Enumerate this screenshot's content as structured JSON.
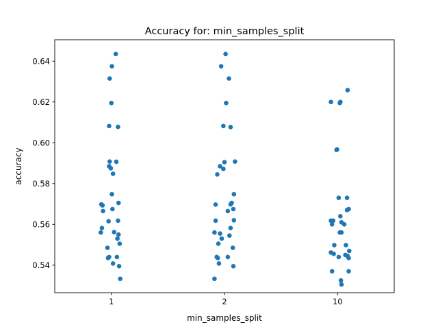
{
  "chart_data": {
    "type": "scatter",
    "title": "Accuracy for: min_samples_split",
    "xlabel": "min_samples_split",
    "ylabel": "accuracy",
    "categories": [
      "1",
      "2",
      "10"
    ],
    "ylim": [
      0.5265,
      0.6505
    ],
    "yticks": [
      "0.54",
      "0.56",
      "0.58",
      "0.60",
      "0.62",
      "0.64"
    ],
    "grid": false,
    "marker_color": "#1f77b4",
    "series": [
      {
        "category": "1",
        "points": [
          {
            "offset": 0.08,
            "y": 0.6435
          },
          {
            "offset": 0.01,
            "y": 0.6375
          },
          {
            "offset": -0.03,
            "y": 0.6315
          },
          {
            "offset": 0.0,
            "y": 0.6195
          },
          {
            "offset": -0.04,
            "y": 0.6082
          },
          {
            "offset": 0.12,
            "y": 0.6078
          },
          {
            "offset": -0.03,
            "y": 0.5908
          },
          {
            "offset": 0.09,
            "y": 0.5907
          },
          {
            "offset": -0.04,
            "y": 0.5885
          },
          {
            "offset": -0.01,
            "y": 0.5875
          },
          {
            "offset": 0.03,
            "y": 0.5848
          },
          {
            "offset": 0.01,
            "y": 0.5748
          },
          {
            "offset": 0.13,
            "y": 0.5705
          },
          {
            "offset": -0.18,
            "y": 0.5698
          },
          {
            "offset": -0.16,
            "y": 0.5693
          },
          {
            "offset": 0.02,
            "y": 0.5675
          },
          {
            "offset": -0.15,
            "y": 0.5665
          },
          {
            "offset": 0.12,
            "y": 0.5618
          },
          {
            "offset": -0.05,
            "y": 0.5615
          },
          {
            "offset": -0.17,
            "y": 0.5582
          },
          {
            "offset": -0.19,
            "y": 0.556
          },
          {
            "offset": 0.05,
            "y": 0.5562
          },
          {
            "offset": 0.13,
            "y": 0.555
          },
          {
            "offset": 0.11,
            "y": 0.553
          },
          {
            "offset": 0.15,
            "y": 0.5505
          },
          {
            "offset": -0.07,
            "y": 0.5485
          },
          {
            "offset": -0.04,
            "y": 0.544
          },
          {
            "offset": -0.06,
            "y": 0.5435
          },
          {
            "offset": 0.1,
            "y": 0.544
          },
          {
            "offset": 0.03,
            "y": 0.5408
          },
          {
            "offset": 0.14,
            "y": 0.5395
          },
          {
            "offset": 0.16,
            "y": 0.5333
          }
        ]
      },
      {
        "category": "2",
        "points": [
          {
            "offset": 0.02,
            "y": 0.6435
          },
          {
            "offset": -0.06,
            "y": 0.6375
          },
          {
            "offset": 0.08,
            "y": 0.6315
          },
          {
            "offset": 0.03,
            "y": 0.6195
          },
          {
            "offset": -0.02,
            "y": 0.6082
          },
          {
            "offset": 0.11,
            "y": 0.6077
          },
          {
            "offset": 0.19,
            "y": 0.5908
          },
          {
            "offset": 0.0,
            "y": 0.5905
          },
          {
            "offset": -0.08,
            "y": 0.5885
          },
          {
            "offset": -0.02,
            "y": 0.5872
          },
          {
            "offset": -0.13,
            "y": 0.5845
          },
          {
            "offset": 0.17,
            "y": 0.5748
          },
          {
            "offset": 0.13,
            "y": 0.5705
          },
          {
            "offset": 0.11,
            "y": 0.5698
          },
          {
            "offset": -0.16,
            "y": 0.5697
          },
          {
            "offset": 0.16,
            "y": 0.5675
          },
          {
            "offset": 0.06,
            "y": 0.5665
          },
          {
            "offset": 0.17,
            "y": 0.562
          },
          {
            "offset": -0.16,
            "y": 0.5618
          },
          {
            "offset": 0.11,
            "y": 0.5582
          },
          {
            "offset": -0.18,
            "y": 0.556
          },
          {
            "offset": -0.08,
            "y": 0.5555
          },
          {
            "offset": 0.09,
            "y": 0.5545
          },
          {
            "offset": -0.05,
            "y": 0.553
          },
          {
            "offset": -0.11,
            "y": 0.5505
          },
          {
            "offset": 0.15,
            "y": 0.5485
          },
          {
            "offset": -0.14,
            "y": 0.544
          },
          {
            "offset": -0.12,
            "y": 0.5435
          },
          {
            "offset": 0.06,
            "y": 0.544
          },
          {
            "offset": -0.1,
            "y": 0.5408
          },
          {
            "offset": 0.16,
            "y": 0.5395
          },
          {
            "offset": -0.18,
            "y": 0.5333
          }
        ]
      },
      {
        "category": "10",
        "points": [
          {
            "offset": 0.18,
            "y": 0.6258
          },
          {
            "offset": -0.12,
            "y": 0.62
          },
          {
            "offset": 0.05,
            "y": 0.62
          },
          {
            "offset": 0.04,
            "y": 0.6195
          },
          {
            "offset": -0.01,
            "y": 0.5967
          },
          {
            "offset": -0.02,
            "y": 0.5965
          },
          {
            "offset": 0.02,
            "y": 0.573
          },
          {
            "offset": 0.17,
            "y": 0.573
          },
          {
            "offset": 0.2,
            "y": 0.5675
          },
          {
            "offset": 0.17,
            "y": 0.567
          },
          {
            "offset": 0.05,
            "y": 0.564
          },
          {
            "offset": -0.12,
            "y": 0.5618
          },
          {
            "offset": -0.08,
            "y": 0.5618
          },
          {
            "offset": 0.07,
            "y": 0.561
          },
          {
            "offset": -0.1,
            "y": 0.56
          },
          {
            "offset": 0.12,
            "y": 0.56
          },
          {
            "offset": 0.07,
            "y": 0.556
          },
          {
            "offset": 0.04,
            "y": 0.556
          },
          {
            "offset": -0.06,
            "y": 0.5498
          },
          {
            "offset": 0.15,
            "y": 0.5498
          },
          {
            "offset": 0.21,
            "y": 0.547
          },
          {
            "offset": -0.12,
            "y": 0.5462
          },
          {
            "offset": -0.07,
            "y": 0.5455
          },
          {
            "offset": 0.14,
            "y": 0.545
          },
          {
            "offset": 0.18,
            "y": 0.5445
          },
          {
            "offset": 0.02,
            "y": 0.544
          },
          {
            "offset": 0.2,
            "y": 0.5435
          },
          {
            "offset": -0.1,
            "y": 0.537
          },
          {
            "offset": 0.2,
            "y": 0.537
          },
          {
            "offset": 0.06,
            "y": 0.5325
          },
          {
            "offset": 0.07,
            "y": 0.5305
          }
        ]
      }
    ]
  }
}
